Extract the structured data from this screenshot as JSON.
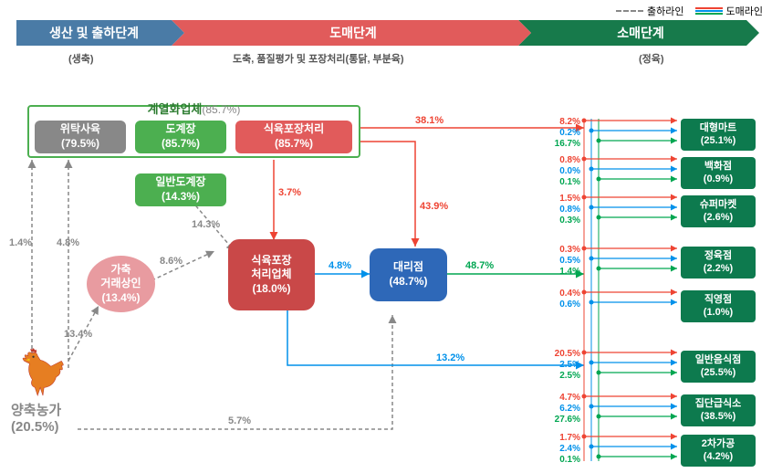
{
  "legend": {
    "dash_label": "출하라인",
    "solid_label": "도매라인"
  },
  "stages": {
    "s1": {
      "title": "생산 및 출하단계",
      "sub": "(생축)"
    },
    "s2": {
      "title": "도매단계",
      "sub": "도축, 품질평가 및 포장처리(통닭, 부분육)"
    },
    "s3": {
      "title": "소매단계",
      "sub": "(정육)"
    }
  },
  "integrated": {
    "title": "계열화업체",
    "pct": "(85.7%)",
    "box1": {
      "name": "위탁사육",
      "pct": "(79.5%)",
      "bg": "#888888"
    },
    "box2": {
      "name": "도계장",
      "pct": "(85.7%)",
      "bg": "#4caf50"
    },
    "box3": {
      "name": "식육포장처리",
      "pct": "(85.7%)",
      "bg": "#e15b5b"
    }
  },
  "nodes": {
    "general_slaughter": {
      "name": "일반도계장",
      "pct": "(14.3%)",
      "bg": "#4caf50"
    },
    "dealer": {
      "name": "가축\n거래상인",
      "pct": "(13.4%)",
      "bg": "#e89ba0"
    },
    "packer": {
      "name": "식육포장\n처리업체",
      "pct": "(18.0%)",
      "bg": "#c94848"
    },
    "distributor": {
      "name": "대리점",
      "pct": "(48.7%)",
      "bg": "#2e68b8"
    },
    "farm": {
      "name": "양축농가",
      "pct": "(20.5%)"
    }
  },
  "flows": {
    "f1_4": "1.4%",
    "f4_8": "4.8%",
    "f8_6": "8.6%",
    "f13_4": "13.4%",
    "f14_3": "14.3%",
    "f3_7": "3.7%",
    "f38_1": "38.1%",
    "f43_9": "43.9%",
    "f4_8b": "4.8%",
    "f48_7": "48.7%",
    "f13_2": "13.2%",
    "f5_7": "5.7%"
  },
  "retail": [
    {
      "name": "대형마트",
      "pct": "(25.1%)",
      "r": "8.2%",
      "b": "0.2%",
      "g": "16.7%"
    },
    {
      "name": "백화점",
      "pct": "(0.9%)",
      "r": "0.8%",
      "b": "0.0%",
      "g": "0.1%"
    },
    {
      "name": "슈퍼마켓",
      "pct": "(2.6%)",
      "r": "1.5%",
      "b": "0.8%",
      "g": "0.3%"
    },
    {
      "name": "정육점",
      "pct": "(2.2%)",
      "r": "0.3%",
      "b": "0.5%",
      "g": "1.4%"
    },
    {
      "name": "직영점",
      "pct": "(1.0%)",
      "r": "0.4%",
      "b": "0.6%",
      "g": ""
    },
    {
      "name": "일반음식점",
      "pct": "(25.5%)",
      "r": "20.5%",
      "b": "2.5%",
      "g": "2.5%"
    },
    {
      "name": "집단급식소",
      "pct": "(38.5%)",
      "r": "4.7%",
      "b": "6.2%",
      "g": "27.6%"
    },
    {
      "name": "2차가공",
      "pct": "(4.2%)",
      "r": "1.7%",
      "b": "2.4%",
      "g": "0.1%"
    }
  ],
  "colors": {
    "red": "#e43333",
    "blue": "#0091ea",
    "green": "#00a651",
    "gray": "#888888"
  }
}
